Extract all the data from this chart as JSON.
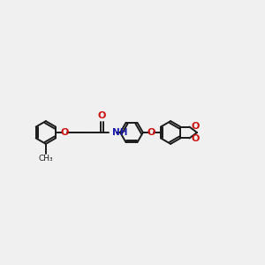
{
  "bg_color": "#f0f0f0",
  "bond_color": "#1a1a1a",
  "bond_lw": 1.4,
  "N_color": "#1a1aaa",
  "O_color": "#cc1111",
  "C_color": "#1a1a1a",
  "figsize": [
    3.0,
    3.0
  ],
  "dpi": 100,
  "ring_r": 0.42,
  "xlim": [
    -4.8,
    4.8
  ],
  "ylim": [
    -1.5,
    1.5
  ]
}
